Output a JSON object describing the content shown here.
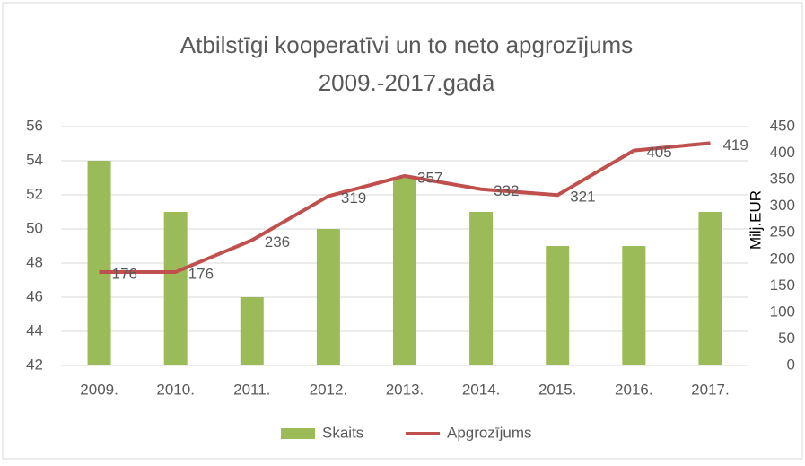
{
  "chart_data": {
    "type": "bar-line",
    "title": [
      "Atbilstīgi kooperatīvi un to neto apgrozījums",
      "2009.-2017.gadā"
    ],
    "y2_label": "Milj.EUR",
    "categories": [
      "2009.",
      "2010.",
      "2011.",
      "2012.",
      "2013.",
      "2014.",
      "2015.",
      "2016.",
      "2017."
    ],
    "series": [
      {
        "name": "Skaits",
        "type": "bar",
        "color": "#9bbb59",
        "values": [
          54,
          51,
          46,
          50,
          53,
          51,
          49,
          49,
          51
        ]
      },
      {
        "name": "Apgrozījums",
        "type": "line",
        "axis": "y2",
        "color": "#c0504d",
        "values": [
          176,
          176,
          236,
          319,
          357,
          332,
          321,
          405,
          419
        ]
      }
    ],
    "ylim": [
      42,
      56
    ],
    "yticks": [
      42,
      44,
      46,
      48,
      50,
      52,
      54,
      56
    ],
    "y2lim": [
      0,
      450
    ],
    "y2ticks": [
      0,
      50,
      100,
      150,
      200,
      250,
      300,
      350,
      400,
      450
    ],
    "grid": true,
    "legend": "bottom"
  }
}
